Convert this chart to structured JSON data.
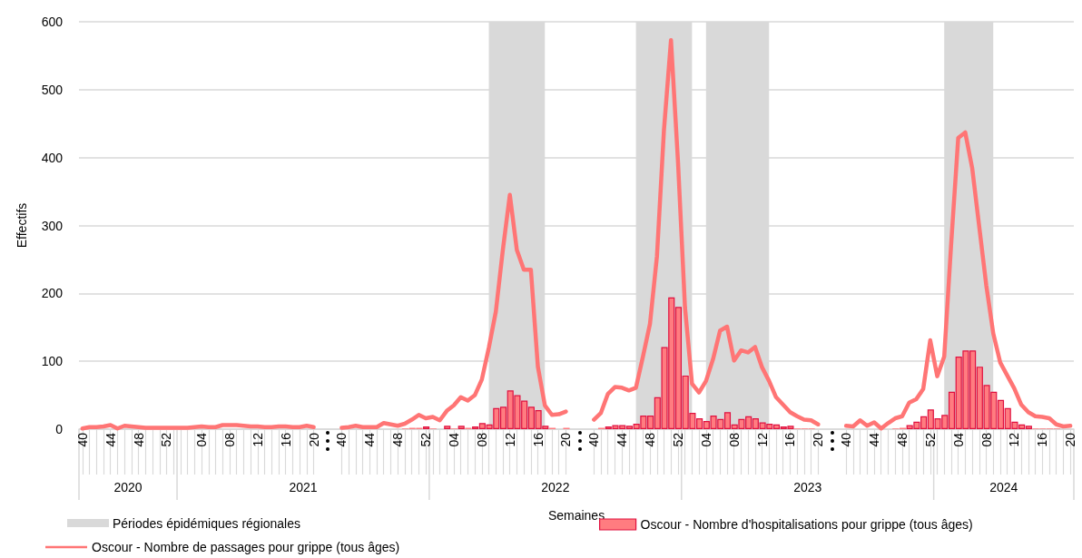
{
  "chart_data": {
    "type": "bar",
    "xlabel": "Semaines",
    "ylabel": "Effectifs",
    "categories": [
      "40",
      null,
      null,
      null,
      "44",
      null,
      null,
      null,
      "48",
      null,
      null,
      null,
      "52",
      null,
      null,
      null,
      null,
      "04",
      null,
      null,
      null,
      "08",
      null,
      null,
      null,
      "12",
      null,
      null,
      null,
      "16",
      null,
      null,
      null,
      "20",
      null,
      null,
      null,
      "40",
      null,
      null,
      null,
      "44",
      null,
      null,
      null,
      "48",
      null,
      null,
      null,
      "52",
      null,
      null,
      null,
      "04",
      null,
      null,
      null,
      "08",
      null,
      null,
      null,
      "12",
      null,
      null,
      null,
      "16",
      null,
      null,
      null,
      "20",
      null,
      null,
      null,
      "40",
      null,
      null,
      null,
      "44",
      null,
      null,
      null,
      "48",
      null,
      null,
      null,
      "52",
      null,
      null,
      null,
      "04",
      null,
      null,
      null,
      "08",
      null,
      null,
      null,
      "12",
      null,
      null,
      null,
      "16",
      null,
      null,
      null,
      "20",
      null,
      null,
      null,
      "40",
      null,
      null,
      null,
      "44",
      null,
      null,
      null,
      "48",
      null,
      null,
      null,
      "52",
      null,
      null,
      null,
      "04",
      null,
      null,
      null,
      "08",
      null,
      null,
      null,
      "12",
      null,
      null,
      null,
      "16",
      null,
      null,
      null,
      "20"
    ],
    "series": [
      {
        "name": "Oscour - Nombre d'hospitalisations pour grippe (tous âges)",
        "color": "#ff7c80",
        "values": [
          null,
          null,
          null,
          null,
          null,
          null,
          null,
          null,
          null,
          null,
          null,
          null,
          null,
          null,
          null,
          null,
          null,
          null,
          null,
          null,
          null,
          null,
          null,
          null,
          null,
          null,
          null,
          null,
          null,
          null,
          null,
          null,
          null,
          null,
          null,
          null,
          null,
          null,
          null,
          null,
          null,
          null,
          null,
          null,
          null,
          null,
          1,
          2,
          2,
          4,
          1,
          null,
          5,
          1,
          5,
          2,
          4,
          9,
          7,
          31,
          33,
          57,
          50,
          42,
          33,
          28,
          5,
          2,
          null,
          2,
          null,
          null,
          null,
          null,
          2,
          4,
          6,
          6,
          5,
          8,
          20,
          20,
          47,
          121,
          194,
          180,
          79,
          24,
          16,
          12,
          20,
          15,
          25,
          7,
          15,
          19,
          16,
          10,
          8,
          7,
          4,
          5,
          1,
          1,
          1,
          null,
          null,
          null,
          null,
          null,
          null,
          null,
          null,
          null,
          null,
          null,
          1,
          2,
          6,
          11,
          19,
          29,
          16,
          21,
          55,
          107,
          116,
          116,
          92,
          65,
          55,
          43,
          31,
          11,
          7,
          5,
          1,
          1,
          1,
          1,
          null,
          null
        ]
      },
      {
        "name": "Oscour - Nombre de passages pour grippe (tous âges)",
        "type": "line",
        "color": "#ff7575",
        "values": [
          1,
          3,
          3,
          4,
          6,
          1,
          5,
          4,
          3,
          2,
          2,
          2,
          2,
          2,
          2,
          2,
          3,
          4,
          3,
          3,
          6,
          6,
          6,
          5,
          4,
          4,
          3,
          3,
          4,
          4,
          3,
          3,
          5,
          3,
          null,
          null,
          null,
          2,
          3,
          5,
          3,
          3,
          3,
          9,
          7,
          5,
          8,
          14,
          21,
          16,
          18,
          13,
          27,
          35,
          47,
          42,
          50,
          73,
          120,
          173,
          264,
          345,
          264,
          235,
          235,
          92,
          35,
          21,
          22,
          26,
          null,
          null,
          null,
          14,
          24,
          52,
          62,
          61,
          57,
          61,
          107,
          155,
          255,
          441,
          573,
          394,
          179,
          67,
          54,
          71,
          103,
          145,
          151,
          101,
          116,
          113,
          121,
          91,
          71,
          47,
          36,
          25,
          19,
          14,
          13,
          7,
          null,
          null,
          null,
          5,
          4,
          13,
          5,
          10,
          1,
          9,
          16,
          19,
          39,
          44,
          59,
          131,
          78,
          107,
          274,
          429,
          437,
          384,
          298,
          212,
          141,
          98,
          79,
          60,
          36,
          25,
          19,
          18,
          16,
          7,
          4,
          5
        ]
      }
    ],
    "annotations": [
      "2020",
      "2021",
      "2022",
      "2023",
      "2024",
      "Périodes épidémiques régionales"
    ],
    "ylim": [
      0,
      600
    ],
    "yticks": [
      0,
      100,
      200,
      300,
      400,
      500,
      600
    ],
    "grid": "y",
    "legend": "bottom"
  }
}
